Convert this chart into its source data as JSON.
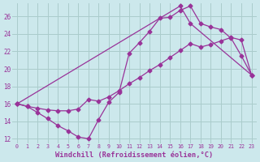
{
  "bg_color": "#cce8ec",
  "grid_color": "#aacccc",
  "line_color": "#993399",
  "xlabel": "Windchill (Refroidissement éolien,°C)",
  "xlim": [
    -0.5,
    23.5
  ],
  "ylim": [
    11.5,
    27.5
  ],
  "yticks": [
    12,
    14,
    16,
    18,
    20,
    22,
    24,
    26
  ],
  "xticks": [
    0,
    1,
    2,
    3,
    4,
    5,
    6,
    7,
    8,
    9,
    10,
    11,
    12,
    13,
    14,
    15,
    16,
    17,
    18,
    19,
    20,
    21,
    22,
    23
  ],
  "curve1_x": [
    0,
    1,
    2,
    3,
    4,
    5,
    6,
    7,
    8,
    9,
    10,
    11,
    12,
    13,
    14,
    15,
    16,
    17,
    18,
    19,
    20,
    21,
    22,
    23
  ],
  "curve1_y": [
    16.0,
    15.7,
    15.0,
    14.3,
    13.5,
    12.9,
    12.2,
    12.0,
    14.2,
    16.2,
    17.3,
    21.8,
    23.0,
    24.3,
    25.8,
    25.9,
    26.7,
    27.2,
    25.2,
    24.8,
    24.5,
    23.5,
    21.5,
    19.3
  ],
  "curve2_x": [
    0,
    1,
    2,
    3,
    4,
    5,
    6,
    7,
    8,
    9,
    10,
    11,
    12,
    13,
    14,
    15,
    16,
    17,
    18,
    19,
    20,
    21,
    22,
    23
  ],
  "curve2_y": [
    16.0,
    15.7,
    15.5,
    15.3,
    15.2,
    15.2,
    15.4,
    16.5,
    16.3,
    16.8,
    17.5,
    18.3,
    19.0,
    19.8,
    20.5,
    21.3,
    22.1,
    22.9,
    22.5,
    22.8,
    23.2,
    23.6,
    23.3,
    19.3
  ],
  "curve3_x": [
    0,
    16,
    17,
    23
  ],
  "curve3_y": [
    16.0,
    27.2,
    25.2,
    19.3
  ]
}
